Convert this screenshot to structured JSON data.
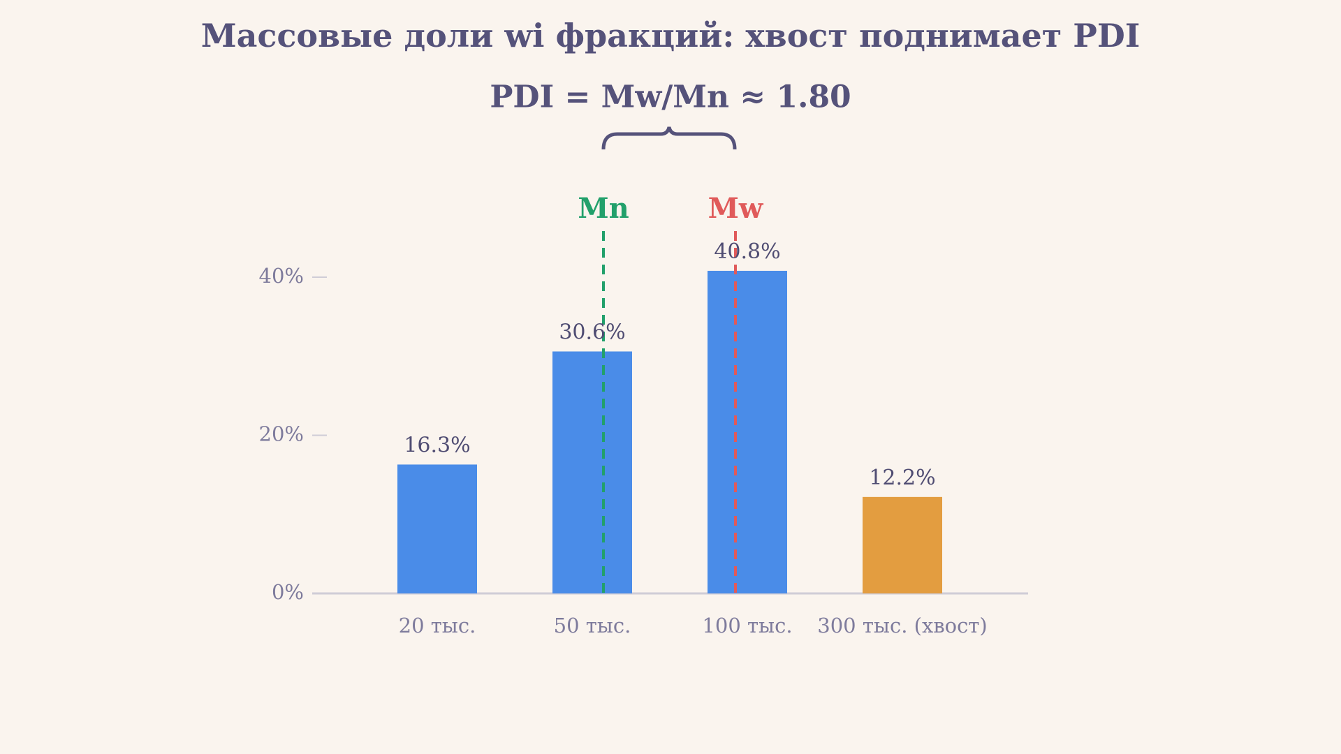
{
  "chart_data": {
    "type": "bar",
    "title": "Массовые доли wi фракций: хвост поднимает PDI",
    "subtitle": "PDI = Mw/Mn ≈ 1.80",
    "annotations": [
      "Mn",
      "Mw"
    ],
    "categories": [
      "20 тыс.",
      "50 тыс.",
      "100 тыс.",
      "300 тыс. (хвост)"
    ],
    "values": [
      16.3,
      30.6,
      40.8,
      12.2
    ],
    "value_labels": [
      "16.3%",
      "30.6%",
      "40.8%",
      "12.2%"
    ],
    "colors": [
      "#4a8ce8",
      "#4a8ce8",
      "#4a8ce8",
      "#e39d40"
    ],
    "ylim": [
      0,
      40
    ],
    "yticks": [
      {
        "value": 0,
        "label": "0%"
      },
      {
        "value": 20,
        "label": "20%"
      },
      {
        "value": 40,
        "label": "40%"
      }
    ],
    "grid": false
  }
}
